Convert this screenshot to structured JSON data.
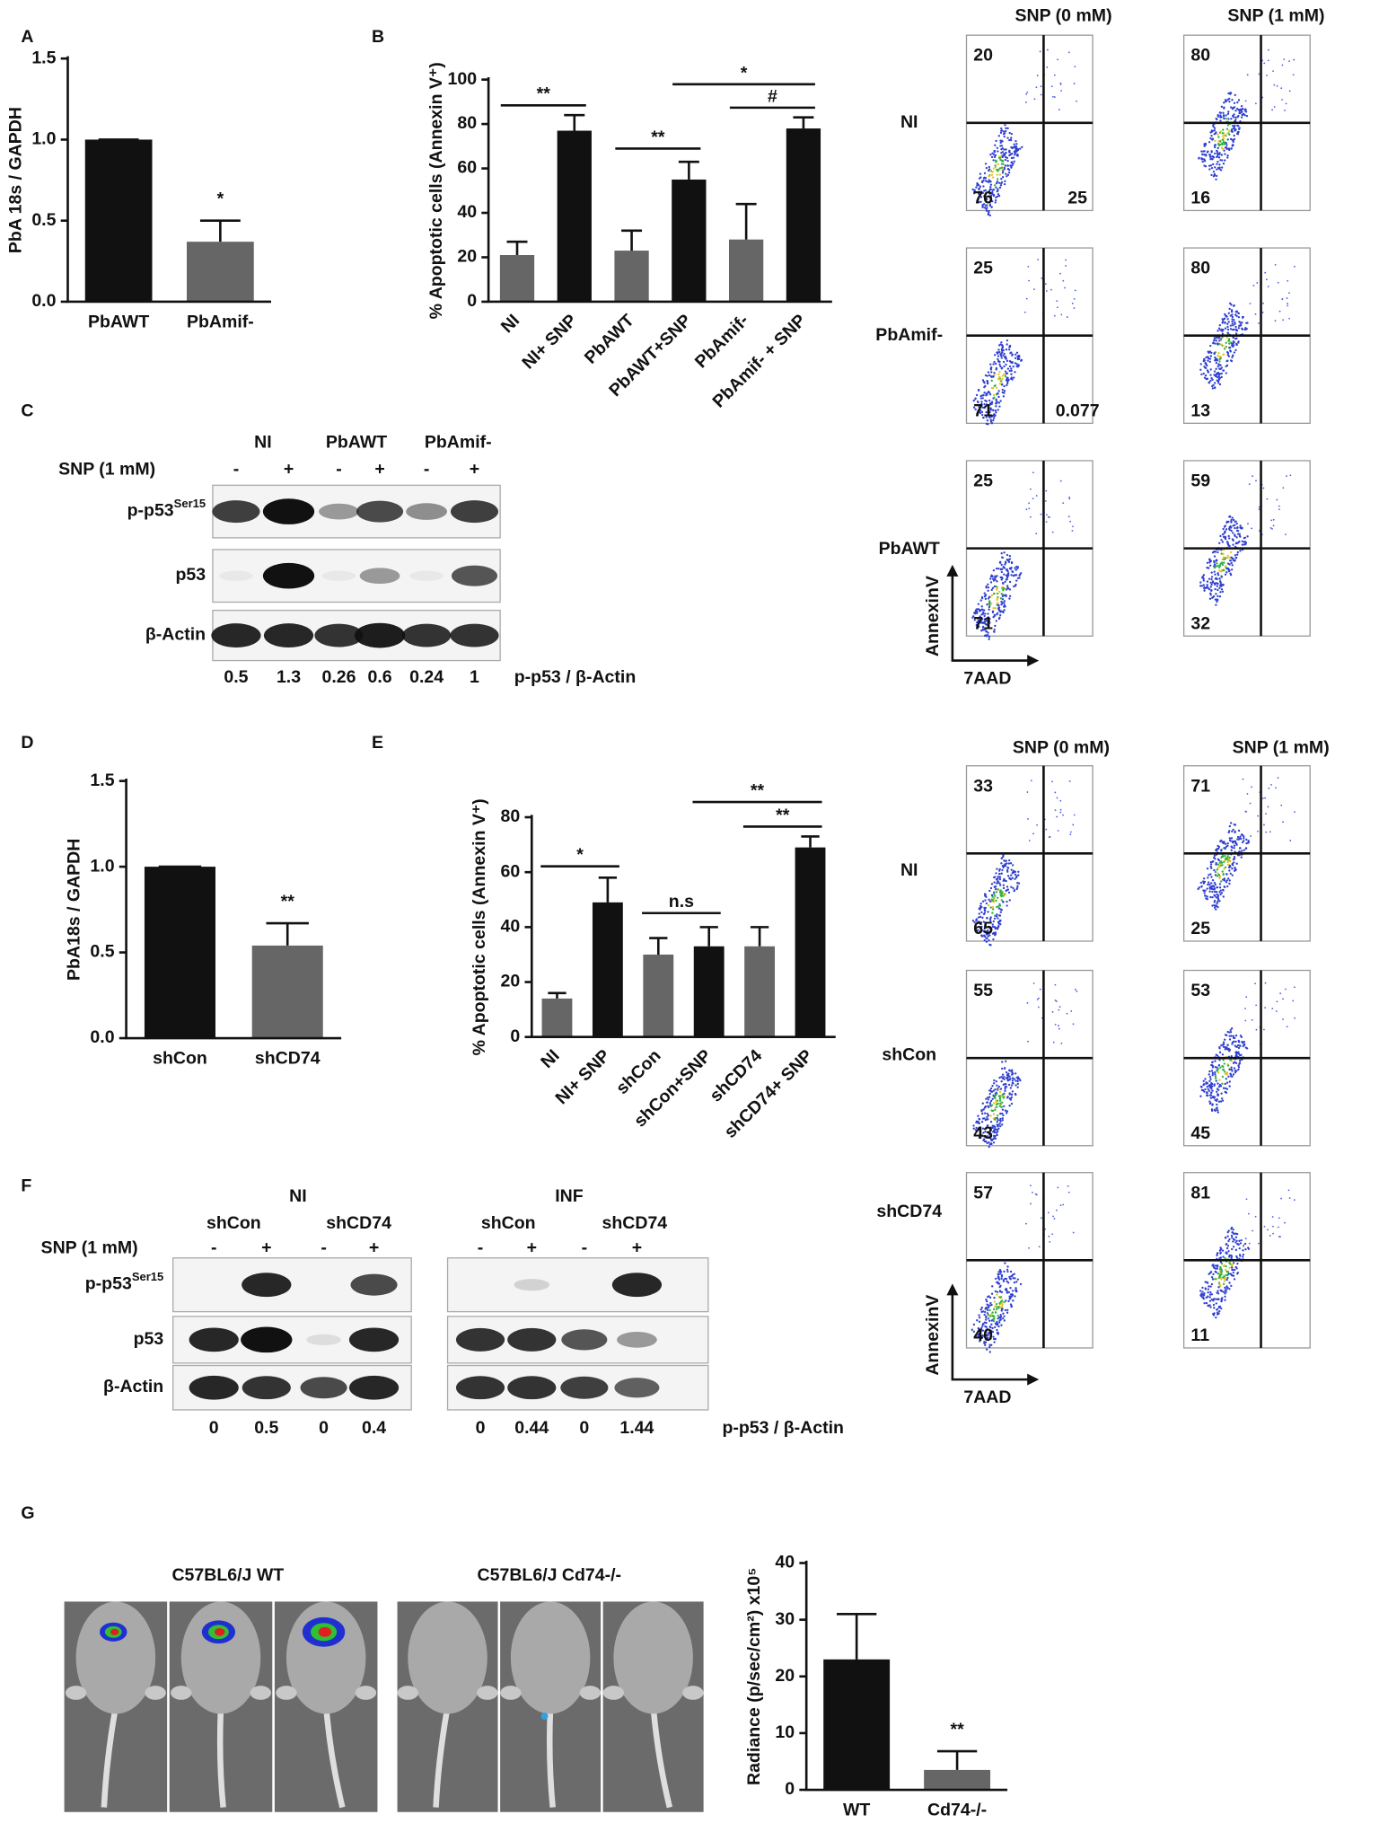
{
  "panel_labels": [
    "A",
    "B",
    "C",
    "D",
    "E",
    "F",
    "G"
  ],
  "chart_data": [
    {
      "type": "bar",
      "y_label": "PbA 18s / GAPDH",
      "categories": [
        "PbAWT",
        "PbAmif-"
      ],
      "values": [
        1.0,
        0.37
      ],
      "errors": [
        0,
        0.13
      ],
      "colors": [
        "#111111",
        "#666666"
      ],
      "ylim": [
        0,
        1.5
      ],
      "yticks": [
        {
          "value": 0,
          "label": "0.0"
        },
        0.5,
        {
          "value": 1,
          "label": "1.0"
        },
        1.5
      ],
      "annotations": [
        "*"
      ]
    },
    {
      "type": "bar",
      "y_label": "% Apoptotic cells (Annexin V⁺)",
      "categories": [
        "NI",
        "NI+ SNP",
        "PbAWT",
        "PbAWT+SNP",
        "PbAmif-",
        "PbAmif- + SNP"
      ],
      "values": [
        21,
        77,
        23,
        55,
        28,
        78
      ],
      "errors": [
        6,
        7,
        9,
        8,
        16,
        5
      ],
      "colors": [
        "#666666",
        "#111111",
        "#666666",
        "#111111",
        "#666666",
        "#111111"
      ],
      "ylim": [
        0,
        100
      ],
      "yticks": [
        0,
        20,
        40,
        60,
        80,
        100
      ],
      "annotations": [
        "**",
        "**",
        "*",
        "#"
      ]
    },
    {
      "type": "bar",
      "y_label": "PbA18s / GAPDH",
      "categories": [
        "shCon",
        "shCD74"
      ],
      "values": [
        1.0,
        0.54
      ],
      "errors": [
        0,
        0.13
      ],
      "colors": [
        "#111111",
        "#666666"
      ],
      "ylim": [
        0,
        1.5
      ],
      "yticks": [
        {
          "value": 0,
          "label": "0.0"
        },
        0.5,
        {
          "value": 1,
          "label": "1.0"
        },
        1.5
      ],
      "annotations": [
        "**"
      ]
    },
    {
      "type": "bar",
      "y_label": "% Apoptotic cells (Annexin V⁺)",
      "categories": [
        "NI",
        "NI+ SNP",
        "shCon",
        "shCon+SNP",
        "shCD74",
        "shCD74+ SNP"
      ],
      "values": [
        14,
        49,
        30,
        33,
        33,
        69
      ],
      "errors": [
        2,
        9,
        6,
        7,
        7,
        4
      ],
      "colors": [
        "#666666",
        "#111111",
        "#666666",
        "#111111",
        "#666666",
        "#111111"
      ],
      "ylim": [
        0,
        80
      ],
      "yticks": [
        0,
        20,
        40,
        60,
        80
      ],
      "annotations": [
        "*",
        "n.s",
        "**",
        "**"
      ]
    },
    {
      "type": "bar",
      "y_label": "Radiance (p/sec/cm²) x10⁵",
      "categories": [
        "WT",
        "Cd74-/-"
      ],
      "values": [
        23,
        3.5
      ],
      "errors": [
        8,
        3.3
      ],
      "colors": [
        "#111111",
        "#666666"
      ],
      "ylim": [
        0,
        40
      ],
      "yticks": [
        0,
        10,
        20,
        30,
        40
      ],
      "annotations": [
        "**"
      ]
    }
  ],
  "blot_c": {
    "groups": [
      "NI",
      "PbAWT",
      "PbAmif-"
    ],
    "snp_label": "SNP (1 mM)",
    "signs": [
      "-",
      "+",
      "-",
      "+",
      "-",
      "+"
    ],
    "rows": [
      {
        "label": "p-p53",
        "sup": "Ser15"
      },
      {
        "label": "p53"
      },
      {
        "label": "β-Actin"
      }
    ],
    "quant": [
      0.5,
      1.3,
      0.26,
      0.6,
      0.24,
      1
    ],
    "quant_label": "p-p53 / β-Actin"
  },
  "flow_b": {
    "columns": [
      "SNP (0 mM)",
      "SNP (1 mM)"
    ],
    "y_axis": "AnnexinV",
    "x_axis": "7AAD",
    "rows": [
      {
        "label": "NI",
        "plots": [
          {
            "upper_left": 20,
            "lower_left": 76,
            "lower_right": 25
          },
          {
            "upper_left": 80,
            "lower_left": 16
          }
        ]
      },
      {
        "label": "PbAmif-",
        "plots": [
          {
            "upper_left": 25,
            "lower_left": 71,
            "lower_right": 0.077
          },
          {
            "upper_left": 80,
            "lower_left": 13
          }
        ]
      },
      {
        "label": "PbAWT",
        "plots": [
          {
            "upper_left": 25,
            "lower_left": 71
          },
          {
            "upper_left": 59,
            "lower_left": 32
          }
        ]
      }
    ]
  },
  "blot_f": {
    "conditions": [
      "NI",
      "INF"
    ],
    "groups": [
      "shCon",
      "shCD74",
      "shCon",
      "shCD74"
    ],
    "snp_label": "SNP (1 mM)",
    "signs": [
      "-",
      "+",
      "-",
      "+",
      "-",
      "+",
      "-",
      "+"
    ],
    "rows": [
      {
        "label": "p-p53",
        "sup": "Ser15"
      },
      {
        "label": "p53"
      },
      {
        "label": "β-Actin"
      }
    ],
    "quant": [
      0,
      0.5,
      0,
      0.4,
      0,
      0.44,
      0,
      1.44
    ],
    "quant_label": "p-p53 / β-Actin"
  },
  "flow_e": {
    "columns": [
      "SNP (0 mM)",
      "SNP (1 mM)"
    ],
    "y_axis": "AnnexinV",
    "x_axis": "7AAD",
    "rows": [
      {
        "label": "NI",
        "plots": [
          {
            "upper_left": 33,
            "lower_left": 65
          },
          {
            "upper_left": 71,
            "lower_left": 25
          }
        ]
      },
      {
        "label": "shCon",
        "plots": [
          {
            "upper_left": 55,
            "lower_left": 43
          },
          {
            "upper_left": 53,
            "lower_left": 45
          }
        ]
      },
      {
        "label": "shCD74",
        "plots": [
          {
            "upper_left": 57,
            "lower_left": 40
          },
          {
            "upper_left": 81,
            "lower_left": 11
          }
        ]
      }
    ]
  },
  "mice": {
    "groups": [
      "C57BL6/J WT",
      "C57BL6/J Cd74-/-"
    ]
  }
}
